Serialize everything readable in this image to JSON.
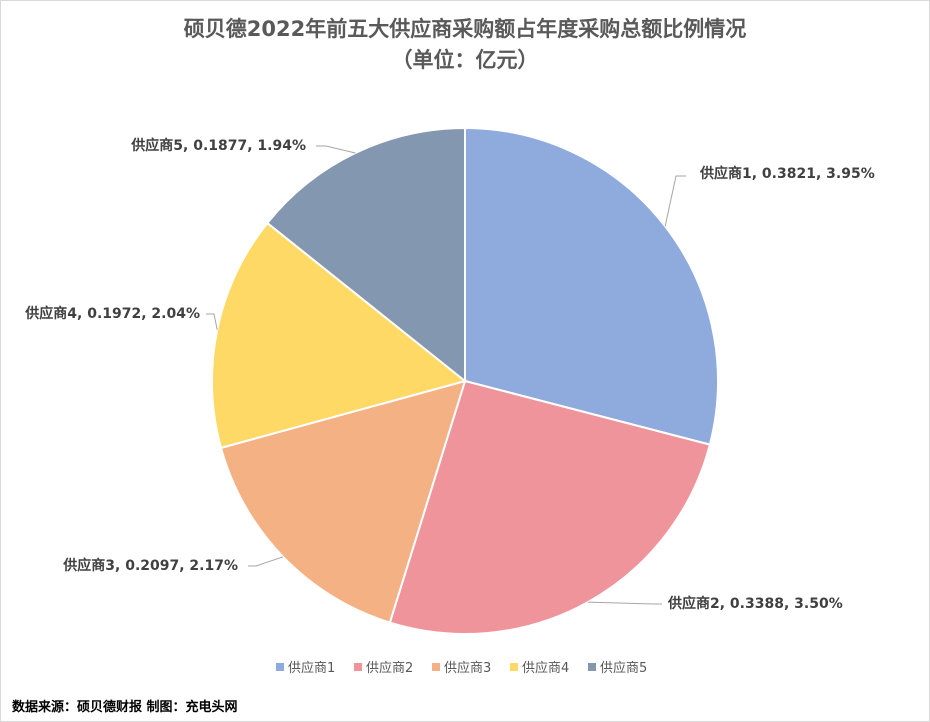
{
  "chart_data": {
    "type": "pie",
    "title": "硕贝德2022年前五大供应商采购额占年度采购总额比例情况",
    "subtitle": "（单位：亿元）",
    "slices": [
      {
        "name": "供应商1",
        "value": 0.3821,
        "percent": "3.95%",
        "label": "供应商1, 0.3821, 3.95%",
        "color": "#8FAADC"
      },
      {
        "name": "供应商2",
        "value": 0.3388,
        "percent": "3.50%",
        "label": "供应商2, 0.3388, 3.50%",
        "color": "#F0949C"
      },
      {
        "name": "供应商3",
        "value": 0.2097,
        "percent": "2.17%",
        "label": "供应商3, 0.2097, 2.17%",
        "color": "#F4B183"
      },
      {
        "name": "供应商4",
        "value": 0.1972,
        "percent": "2.04%",
        "label": "供应商4, 0.1972, 2.04%",
        "color": "#FFD966"
      },
      {
        "name": "供应商5",
        "value": 0.1877,
        "percent": "1.94%",
        "label": "供应商5, 0.1877, 1.94%",
        "color": "#8497B0"
      }
    ],
    "legend_position": "bottom",
    "start_angle": "12 o'clock",
    "direction": "clockwise"
  },
  "footer": {
    "source": "数据来源：硕贝德财报  制图：充电头网"
  }
}
